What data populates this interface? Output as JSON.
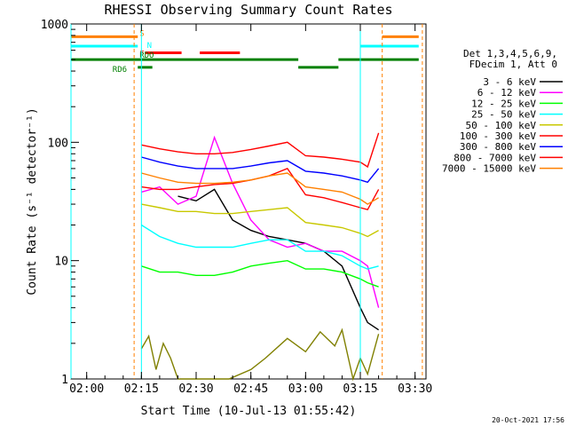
{
  "chart_data": {
    "type": "line",
    "title": "RHESSI Observing Summary Count Rates",
    "xlabel": "Start Time (10-Jul-13 01:55:42)",
    "ylabel": "Count Rate (s⁻¹ detector⁻¹)",
    "yscale": "log",
    "ylim": [
      1,
      1000
    ],
    "xlim": [
      "01:55:42",
      "03:33:00"
    ],
    "x_ticks": [
      "02:00",
      "02:15",
      "02:30",
      "02:45",
      "03:00",
      "03:15",
      "03:30"
    ],
    "y_ticks": [
      "1",
      "10",
      "100",
      "1000"
    ],
    "grid": false,
    "legend_position": "right",
    "legend_header": [
      "Det 1,3,4,5,6,9,",
      "FDecim 1, Att 0"
    ],
    "series": [
      {
        "name": "3 - 6 keV",
        "color": "#000000",
        "x": [
          "02:15",
          "02:20",
          "02:25",
          "02:30",
          "02:35",
          "02:40",
          "02:45",
          "02:50",
          "02:55",
          "03:00",
          "03:05",
          "03:10",
          "03:15",
          "03:17",
          "03:20"
        ],
        "y": [
          null,
          null,
          35,
          32,
          40,
          22,
          18,
          16,
          15,
          14,
          12,
          9,
          4,
          3,
          2.6
        ]
      },
      {
        "name": "6 - 12 keV",
        "color": "#ff00ff",
        "x": [
          "02:15",
          "02:20",
          "02:25",
          "02:30",
          "02:35",
          "02:40",
          "02:45",
          "02:50",
          "02:55",
          "03:00",
          "03:05",
          "03:10",
          "03:15",
          "03:17",
          "03:20"
        ],
        "y": [
          38,
          42,
          30,
          35,
          110,
          45,
          22,
          15,
          13,
          14,
          12,
          12,
          10,
          9,
          4
        ]
      },
      {
        "name": "12 - 25 keV",
        "color": "#00ff00",
        "x": [
          "02:15",
          "02:20",
          "02:25",
          "02:30",
          "02:35",
          "02:40",
          "02:45",
          "02:50",
          "02:55",
          "03:00",
          "03:05",
          "03:10",
          "03:15",
          "03:17",
          "03:20"
        ],
        "y": [
          9,
          8,
          8,
          7.5,
          7.5,
          8,
          9,
          9.5,
          10,
          8.5,
          8.5,
          8,
          7,
          6.5,
          6
        ]
      },
      {
        "name": "25 - 50 keV",
        "color": "#00ffff",
        "x": [
          "02:15",
          "02:20",
          "02:25",
          "02:30",
          "02:35",
          "02:40",
          "02:45",
          "02:50",
          "02:55",
          "03:00",
          "03:05",
          "03:10",
          "03:15",
          "03:17",
          "03:20"
        ],
        "y": [
          20,
          16,
          14,
          13,
          13,
          13,
          14,
          15,
          15,
          12,
          12,
          11,
          9,
          8.5,
          9
        ]
      },
      {
        "name": "50 - 100 keV",
        "color": "#c8c800",
        "x": [
          "02:15",
          "02:20",
          "02:25",
          "02:30",
          "02:35",
          "02:40",
          "02:45",
          "02:50",
          "02:55",
          "03:00",
          "03:05",
          "03:10",
          "03:15",
          "03:17",
          "03:20"
        ],
        "y": [
          30,
          28,
          26,
          26,
          25,
          25,
          26,
          27,
          28,
          21,
          20,
          19,
          17,
          16,
          18
        ]
      },
      {
        "name": "100 - 300 keV",
        "color": "#ff0000",
        "x": [
          "02:15",
          "02:20",
          "02:25",
          "02:30",
          "02:35",
          "02:40",
          "02:45",
          "02:50",
          "02:55",
          "03:00",
          "03:05",
          "03:10",
          "03:15",
          "03:17",
          "03:20"
        ],
        "y": [
          42,
          40,
          40,
          42,
          44,
          45,
          48,
          52,
          60,
          36,
          34,
          31,
          28,
          27,
          40
        ]
      },
      {
        "name": "300 - 800 keV",
        "color": "#0000ff",
        "x": [
          "02:15",
          "02:20",
          "02:25",
          "02:30",
          "02:35",
          "02:40",
          "02:45",
          "02:50",
          "02:55",
          "03:00",
          "03:05",
          "03:10",
          "03:15",
          "03:17",
          "03:20"
        ],
        "y": [
          75,
          68,
          63,
          60,
          60,
          60,
          63,
          67,
          70,
          57,
          55,
          52,
          48,
          46,
          60
        ]
      },
      {
        "name": "800 - 7000 keV",
        "color": "#ff0000",
        "x": [
          "02:15",
          "02:20",
          "02:25",
          "02:30",
          "02:35",
          "02:40",
          "02:45",
          "02:50",
          "02:55",
          "03:00",
          "03:05",
          "03:10",
          "03:15",
          "03:17",
          "03:20"
        ],
        "y": [
          95,
          88,
          83,
          80,
          80,
          82,
          87,
          93,
          100,
          77,
          75,
          72,
          68,
          62,
          120
        ]
      },
      {
        "name": "7000 - 15000 keV",
        "color": "#ff8000",
        "x": [
          "02:15",
          "02:20",
          "02:25",
          "02:30",
          "02:35",
          "02:40",
          "02:45",
          "02:50",
          "02:55",
          "03:00",
          "03:05",
          "03:10",
          "03:15",
          "03:17",
          "03:20"
        ],
        "y": [
          55,
          50,
          46,
          45,
          45,
          46,
          48,
          52,
          55,
          42,
          40,
          38,
          33,
          30,
          34
        ]
      },
      {
        "name": "",
        "color": "#808000",
        "x": [
          "02:15",
          "02:17",
          "02:19",
          "02:21",
          "02:23",
          "02:25",
          "02:29",
          "02:33",
          "02:39",
          "02:45",
          "02:49",
          "02:55",
          "03:00",
          "03:04",
          "03:08",
          "03:10",
          "03:13",
          "03:15",
          "03:17",
          "03:20"
        ],
        "y": [
          1.8,
          2.3,
          1.2,
          2.0,
          1.5,
          1.0,
          1.0,
          1.0,
          1.0,
          1.2,
          1.5,
          2.2,
          1.7,
          2.5,
          1.9,
          2.6,
          1.0,
          1.5,
          1.1,
          2.4
        ]
      }
    ],
    "annotations": {
      "S": "S",
      "N": "N",
      "F": "F",
      "RDO": "RDO",
      "RD6": "RD6"
    },
    "state_bars": {
      "S": {
        "color": "#ff8000",
        "segments": [
          [
            "01:55:42",
            "02:14"
          ],
          [
            "03:21",
            "03:31"
          ]
        ]
      },
      "N": {
        "color": "#00ffff",
        "segments": [
          [
            "01:55:42",
            "02:14"
          ],
          [
            "03:15",
            "03:31"
          ]
        ]
      },
      "F": {
        "color": "#ff0000",
        "segments": [
          [
            "02:16",
            "02:26"
          ],
          [
            "02:31",
            "02:42"
          ]
        ]
      },
      "RDO": {
        "color": "#008000",
        "segments": [
          [
            "01:55:42",
            "02:58"
          ],
          [
            "03:09",
            "03:31"
          ]
        ]
      },
      "RD6": {
        "color": "#008000",
        "segments": [
          [
            "02:14",
            "02:18"
          ],
          [
            "02:58",
            "03:09"
          ]
        ]
      }
    },
    "event_lines": {
      "cyan": [
        "01:55:42",
        "02:15",
        "03:15"
      ],
      "orange": [
        "02:13",
        "03:21",
        "03:32"
      ]
    }
  },
  "footer": {
    "timestamp": "20-Oct-2021 17:56"
  }
}
